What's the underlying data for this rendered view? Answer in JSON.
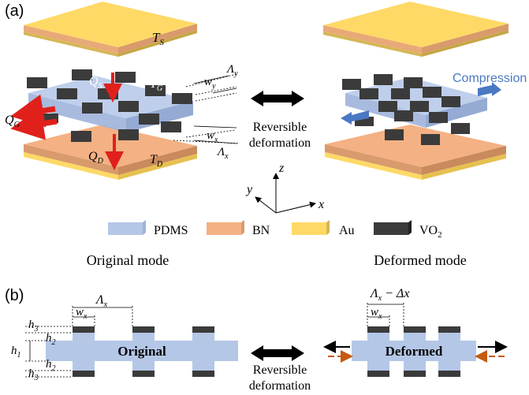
{
  "panel_a_label": "(a)",
  "panel_b_label": "(b)",
  "left_device": {
    "ts": "T",
    "ts_sub": "S",
    "tg": "T",
    "tg_sub": "G",
    "td": "T",
    "td_sub": "D",
    "qs": "Q",
    "qs_sub": "S",
    "qg": "Q",
    "qg_sub": "G",
    "qd": "Q",
    "qd_sub": "D",
    "wy": "w",
    "wy_sub": "y",
    "lambda_y": "Λ",
    "lambda_y_sub": "y",
    "wx": "w",
    "wx_sub": "x",
    "lambda_x": "Λ",
    "lambda_x_sub": "x"
  },
  "right_device": {
    "compression": "Compression"
  },
  "middle_top": {
    "line1": "Reversible",
    "line2": "deformation"
  },
  "axes": {
    "x": "x",
    "y": "y",
    "z": "z"
  },
  "legend": [
    {
      "label": "PDMS",
      "color": "#b4c7e7"
    },
    {
      "label": "BN",
      "color": "#f4b183"
    },
    {
      "label": "Au",
      "color": "#ffd966"
    },
    {
      "label": "VO",
      "sub": "2",
      "color": "#3b3b3b"
    }
  ],
  "modes": {
    "original": "Original mode",
    "deformed": "Deformed mode"
  },
  "panel_b": {
    "lambda": "Λ",
    "lambda_sub": "x",
    "wx": "w",
    "wx_sub": "x",
    "h1": "h",
    "h1_sub": "1",
    "h2": "h",
    "h2_sub": "2",
    "h3": "h",
    "h3_sub": "3",
    "original_label": "Original",
    "deformed_label": "Deformed",
    "lambda_minus": "Λ",
    "lambda_minus_sub": "x",
    "lambda_minus_rest": " − Δx",
    "middle_line1": "Reversible",
    "middle_line2": "deformation"
  },
  "colors": {
    "au": "#ffd966",
    "au_side": "#d6b656",
    "bn": "#f4b183",
    "bn_side": "#d99a6c",
    "pdms": "#b4c7e7",
    "vo2": "#3b3b3b",
    "red_arrow": "#e0201b",
    "blue_arrow": "#4a78c2",
    "orange_arrow": "#c55a11"
  }
}
